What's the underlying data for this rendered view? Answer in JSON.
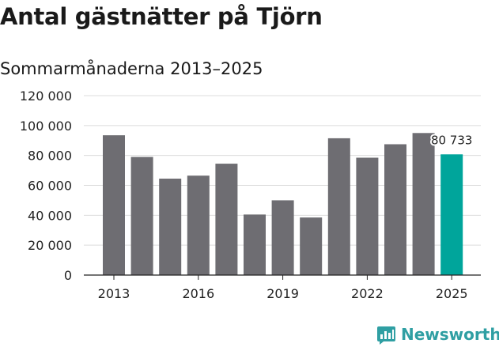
{
  "title": "Antal gästnätter på Tjörn",
  "subtitle": "Sommarmånaderna 2013–2025",
  "brand": {
    "name": "Newsworthy",
    "icon": "newsworthy-logo-icon",
    "color": "#2f9fa3"
  },
  "chart_data": {
    "type": "bar",
    "categories": [
      2013,
      2014,
      2015,
      2016,
      2017,
      2018,
      2019,
      2020,
      2021,
      2022,
      2023,
      2024,
      2025
    ],
    "values": [
      93500,
      79000,
      64500,
      66500,
      74500,
      40500,
      50000,
      38500,
      91500,
      78500,
      87500,
      95000,
      80733
    ],
    "xticks": [
      2013,
      2016,
      2019,
      2022,
      2025
    ],
    "xtick_labels": [
      "2013",
      "2016",
      "2019",
      "2022",
      "2025"
    ],
    "yticks": [
      0,
      20000,
      40000,
      60000,
      80000,
      100000,
      120000
    ],
    "ytick_labels": [
      "0",
      "20 000",
      "40 000",
      "60 000",
      "80 000",
      "100 000",
      "120 000"
    ],
    "ylim": [
      0,
      120000
    ],
    "grid": true,
    "bar_color": "#6e6d72",
    "highlight_color": "#00a59b",
    "highlight_index": 12,
    "annotation": {
      "index": 12,
      "text": "80 733"
    }
  }
}
